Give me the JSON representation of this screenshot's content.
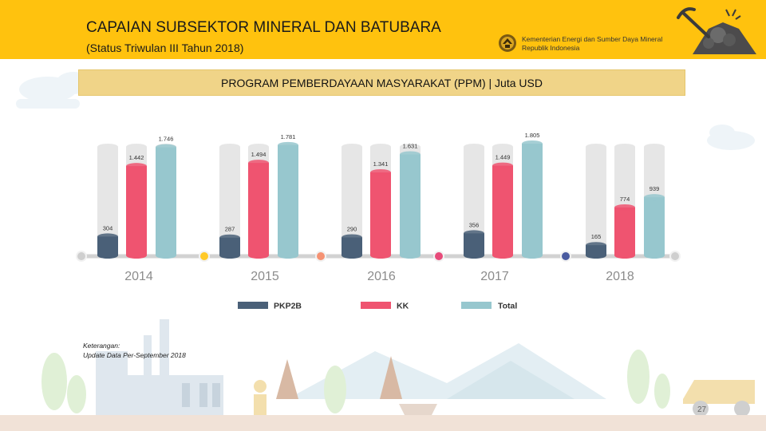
{
  "header": {
    "title": "CAPAIAN SUBSEKTOR MINERAL DAN BATUBARA",
    "subtitle": "(Status Triwulan III Tahun 2018)",
    "ministry_line1": "Kementerian Energi dan Sumber Daya Mineral",
    "ministry_line2": "Republik Indonesia",
    "background_color": "#ffc20e"
  },
  "banner": {
    "text": "PROGRAM PEMBERDAYAAN MASYARAKAT (PPM) | Juta USD",
    "background_color": "#f0d488"
  },
  "chart_data": {
    "type": "bar",
    "title": "",
    "categories": [
      "2014",
      "2015",
      "2016",
      "2017",
      "2018"
    ],
    "series": [
      {
        "name": "PKP2B",
        "color": "#4a6078",
        "values": [
          304,
          287,
          290,
          356,
          165
        ],
        "labels": [
          "304",
          "287",
          "290",
          "356",
          "165"
        ]
      },
      {
        "name": "KK",
        "color": "#ef5470",
        "values": [
          1442,
          1494,
          1341,
          1449,
          774
        ],
        "labels": [
          "1.442",
          "1.494",
          "1.341",
          "1.449",
          "774"
        ]
      },
      {
        "name": "Total",
        "color": "#97c7ce",
        "values": [
          1746,
          1781,
          1631,
          1805,
          939
        ],
        "labels": [
          "1.746",
          "1.781",
          "1.631",
          "1.805",
          "939"
        ]
      }
    ],
    "ylim": [
      0,
      1805
    ],
    "grid": false,
    "legend": "bottom",
    "timeline_dot_colors": [
      "#cfcfcf",
      "#ffc928",
      "#f59273",
      "#e74b7a",
      "#4a5ba0",
      "#cfcfcf"
    ]
  },
  "note": {
    "line1": "Keterangan:",
    "line2": "Update Data Per-September 2018"
  },
  "page_number": "27"
}
